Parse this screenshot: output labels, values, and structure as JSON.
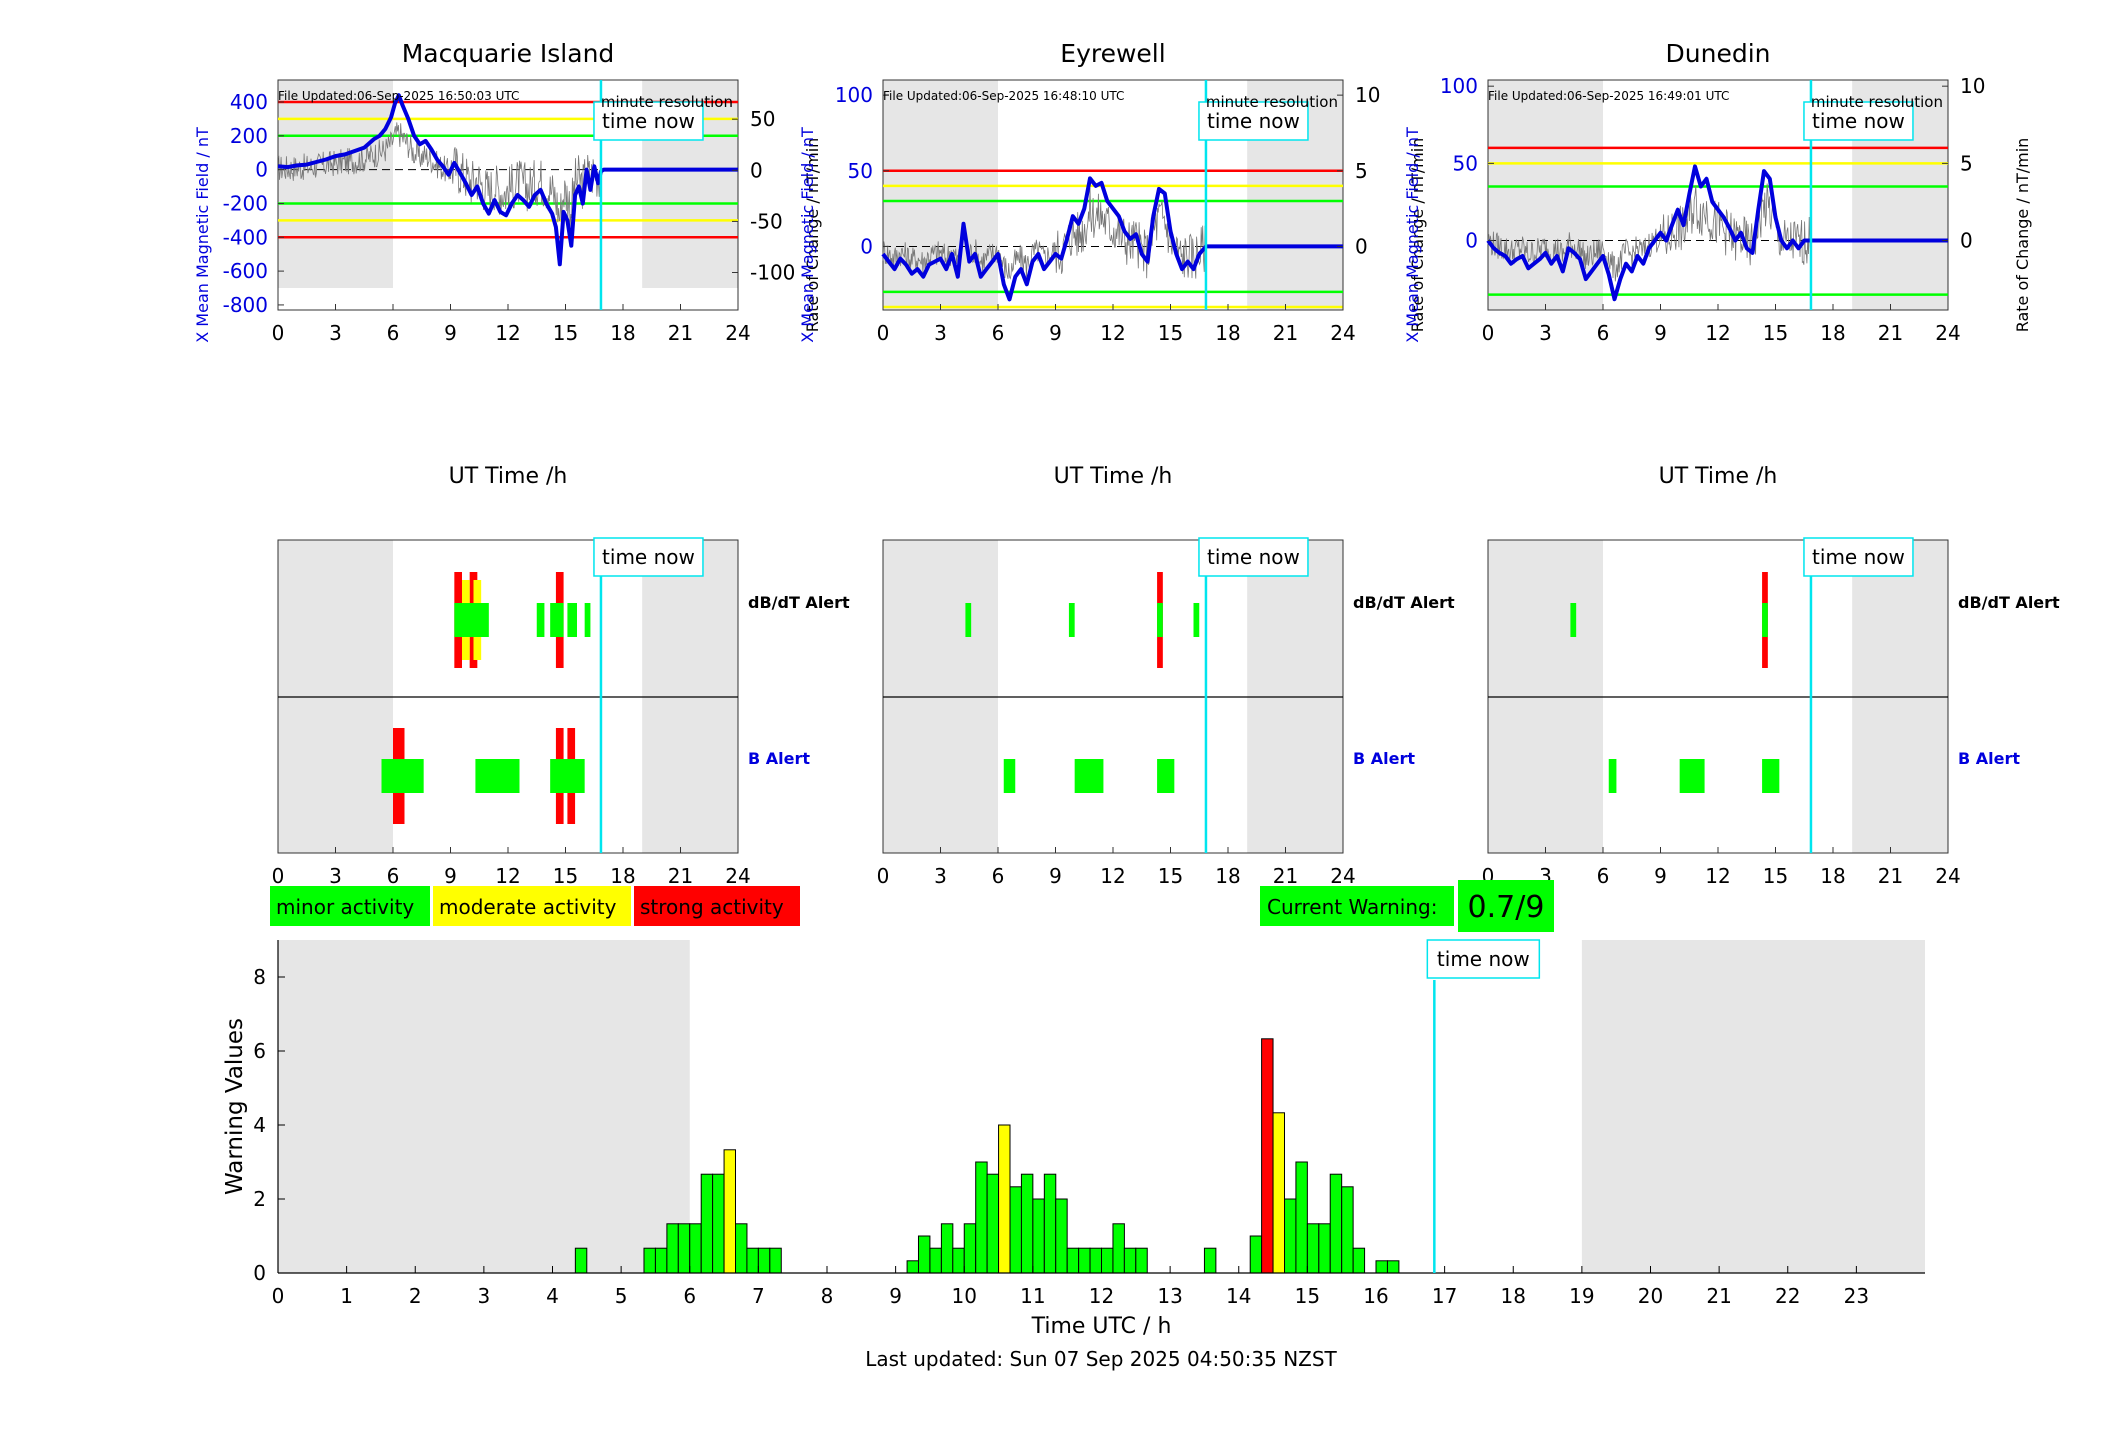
{
  "page": {
    "last_updated": "Last updated: Sun 07 Sep 2025 04:50:35 NZST",
    "time_now_label": "time now",
    "minute_resolution_label": "minute resolution",
    "current_warning_label": "Current Warning:",
    "current_warning_value": "0.7/9",
    "legend": {
      "minor": "minor activity",
      "moderate": "moderate activity",
      "strong": "strong activity"
    },
    "alert_labels": {
      "dbdt": "dB/dT Alert",
      "b": "B Alert"
    },
    "colors": {
      "minor": "#00ff00",
      "moderate": "#ffff00",
      "strong": "#ff0000",
      "field_line": "#0000dd",
      "time_now": "#00e5ee",
      "night_shading": "#e6e6e6"
    }
  },
  "chart_data": [
    {
      "type": "line",
      "title": "Macquarie Island",
      "file_updated": "File Updated:06-Sep-2025 16:50:03 UTC",
      "xlabel": "UT Time /h",
      "ylabel": "X Mean Magnetic Field / nT",
      "ylabel_right": "Rate of Change / nT/min",
      "xlim": [
        0,
        24
      ],
      "xticks": [
        0,
        3,
        6,
        9,
        12,
        15,
        18,
        21,
        24
      ],
      "ylim": [
        -830,
        530
      ],
      "yticks": [
        -800,
        -600,
        -400,
        -200,
        0,
        200,
        400
      ],
      "ylim_right": [
        -136.67,
        88.33
      ],
      "yticks_right": [
        -100,
        -50,
        0,
        50
      ],
      "thresholds": {
        "strong": [
          400,
          -400
        ],
        "moderate": [
          300,
          -300
        ],
        "minor": [
          200,
          -200
        ]
      },
      "night_shading": [
        [
          0,
          6
        ],
        [
          19,
          24
        ]
      ],
      "time_now": 16.85,
      "series": [
        {
          "x": [
            0,
            0.5,
            1,
            1.5,
            2,
            2.5,
            3,
            3.5,
            4,
            4.5,
            5,
            5.3,
            5.6,
            5.9,
            6.1,
            6.3,
            6.5,
            6.8,
            7.1,
            7.4,
            7.7,
            8,
            8.3,
            8.6,
            8.9,
            9.2,
            9.5,
            9.8,
            10.1,
            10.4,
            10.7,
            11,
            11.3,
            11.6,
            11.9,
            12.2,
            12.5,
            12.8,
            13.1,
            13.4,
            13.7,
            14,
            14.3,
            14.5,
            14.7,
            14.9,
            15.1,
            15.3,
            15.5,
            15.7,
            15.9,
            16.1,
            16.3,
            16.5,
            16.7,
            16.85,
            17,
            18,
            19,
            20,
            21,
            22,
            23,
            24
          ],
          "y": [
            20,
            15,
            25,
            30,
            45,
            60,
            80,
            90,
            110,
            130,
            180,
            200,
            240,
            310,
            390,
            440,
            380,
            300,
            200,
            150,
            170,
            120,
            60,
            20,
            -30,
            40,
            -20,
            -80,
            -150,
            -100,
            -200,
            -260,
            -180,
            -250,
            -270,
            -200,
            -150,
            -180,
            -220,
            -150,
            -120,
            -200,
            -260,
            -340,
            -560,
            -250,
            -300,
            -450,
            -150,
            -100,
            -200,
            0,
            -120,
            20,
            -80,
            -10,
            0,
            0,
            0,
            0,
            0,
            0,
            0,
            0
          ]
        }
      ]
    },
    {
      "type": "line",
      "title": "Eyrewell",
      "file_updated": "File Updated:06-Sep-2025 16:48:10 UTC",
      "xlabel": "UT Time /h",
      "ylabel": "X Mean Magnetic Field / nT",
      "ylabel_right": "Rate of Change / nT/min",
      "xlim": [
        0,
        24
      ],
      "xticks": [
        0,
        3,
        6,
        9,
        12,
        15,
        18,
        21,
        24
      ],
      "ylim": [
        -42,
        110
      ],
      "yticks": [
        0,
        50,
        100
      ],
      "ylim_right": [
        -4.2,
        11
      ],
      "yticks_right": [
        0,
        5,
        10
      ],
      "thresholds": {
        "strong": [
          50
        ],
        "moderate": [
          40,
          -40
        ],
        "minor": [
          30,
          -30
        ]
      },
      "night_shading": [
        [
          0,
          6
        ],
        [
          19,
          24
        ]
      ],
      "time_now": 16.85,
      "series": [
        {
          "x": [
            0,
            0.3,
            0.6,
            0.9,
            1.2,
            1.5,
            1.8,
            2.1,
            2.4,
            2.7,
            3,
            3.3,
            3.6,
            3.9,
            4.2,
            4.5,
            4.8,
            5.1,
            5.4,
            5.7,
            6,
            6.3,
            6.6,
            6.9,
            7.2,
            7.5,
            7.8,
            8.1,
            8.4,
            8.7,
            9,
            9.3,
            9.6,
            9.9,
            10.2,
            10.5,
            10.8,
            11.1,
            11.4,
            11.7,
            12,
            12.3,
            12.6,
            12.9,
            13.2,
            13.5,
            13.8,
            14.1,
            14.4,
            14.7,
            15,
            15.3,
            15.6,
            15.9,
            16.2,
            16.5,
            16.85,
            17,
            18,
            19,
            20,
            21,
            22,
            23,
            24
          ],
          "y": [
            -5,
            -10,
            -15,
            -8,
            -12,
            -18,
            -15,
            -20,
            -12,
            -10,
            -8,
            -15,
            -5,
            -20,
            15,
            -10,
            -5,
            -20,
            -15,
            -10,
            -5,
            -25,
            -35,
            -20,
            -15,
            -25,
            -10,
            -5,
            -15,
            -10,
            -5,
            -8,
            5,
            20,
            15,
            25,
            45,
            40,
            42,
            30,
            25,
            20,
            10,
            5,
            8,
            -5,
            -10,
            20,
            38,
            35,
            10,
            -5,
            -15,
            -10,
            -15,
            -5,
            0,
            0,
            0,
            0,
            0,
            0,
            0,
            0,
            0
          ]
        }
      ]
    },
    {
      "type": "line",
      "title": "Dunedin",
      "file_updated": "File Updated:06-Sep-2025 16:49:01 UTC",
      "xlabel": "UT Time /h",
      "ylabel": "X Mean Magnetic Field / nT",
      "ylabel_right": "Rate of Change / nT/min",
      "xlim": [
        0,
        24
      ],
      "xticks": [
        0,
        3,
        6,
        9,
        12,
        15,
        18,
        21,
        24
      ],
      "ylim": [
        -45,
        104
      ],
      "yticks": [
        0,
        50,
        100
      ],
      "ylim_right": [
        -4.5,
        10.4
      ],
      "yticks_right": [
        0,
        5,
        10
      ],
      "thresholds": {
        "strong": [
          60
        ],
        "moderate": [
          50
        ],
        "minor": [
          35,
          -35
        ]
      },
      "night_shading": [
        [
          0,
          6
        ],
        [
          19,
          24
        ]
      ],
      "time_now": 16.85,
      "series": [
        {
          "x": [
            0,
            0.3,
            0.6,
            0.9,
            1.2,
            1.5,
            1.8,
            2.1,
            2.4,
            2.7,
            3,
            3.3,
            3.6,
            3.9,
            4.2,
            4.5,
            4.8,
            5.1,
            5.4,
            5.7,
            6,
            6.3,
            6.6,
            6.9,
            7.2,
            7.5,
            7.8,
            8.1,
            8.4,
            8.7,
            9,
            9.3,
            9.6,
            9.9,
            10.2,
            10.5,
            10.8,
            11.1,
            11.4,
            11.7,
            12,
            12.3,
            12.6,
            12.9,
            13.2,
            13.5,
            13.8,
            14.1,
            14.4,
            14.7,
            15,
            15.3,
            15.6,
            15.9,
            16.2,
            16.5,
            16.85,
            17,
            18,
            19,
            20,
            21,
            22,
            23,
            24
          ],
          "y": [
            0,
            -5,
            -8,
            -10,
            -15,
            -12,
            -10,
            -18,
            -15,
            -12,
            -8,
            -15,
            -10,
            -20,
            -5,
            -8,
            -12,
            -25,
            -20,
            -15,
            -10,
            -22,
            -38,
            -25,
            -15,
            -20,
            -10,
            -15,
            -5,
            0,
            5,
            0,
            10,
            20,
            10,
            30,
            48,
            35,
            40,
            25,
            20,
            15,
            8,
            0,
            5,
            -5,
            -8,
            20,
            45,
            40,
            15,
            0,
            -5,
            0,
            -5,
            0,
            0,
            0,
            0,
            0,
            0,
            0,
            0,
            0,
            0
          ]
        }
      ]
    },
    {
      "type": "alert_timeline",
      "station": "Macquarie Island",
      "xlim": [
        0,
        24
      ],
      "xticks": [
        0,
        3,
        6,
        9,
        12,
        15,
        18,
        21,
        24
      ],
      "night_shading": [
        [
          0,
          6
        ],
        [
          19,
          24
        ]
      ],
      "time_now": 16.85,
      "dbdt_alerts": [
        {
          "start": 9.2,
          "end": 11.0,
          "level": "minor"
        },
        {
          "start": 9.6,
          "end": 10.0,
          "level": "moderate"
        },
        {
          "start": 10.2,
          "end": 10.6,
          "level": "moderate"
        },
        {
          "start": 9.2,
          "end": 9.6,
          "level": "strong"
        },
        {
          "start": 10.0,
          "end": 10.4,
          "level": "strong"
        },
        {
          "start": 13.5,
          "end": 13.9,
          "level": "minor"
        },
        {
          "start": 14.2,
          "end": 14.9,
          "level": "minor"
        },
        {
          "start": 14.5,
          "end": 14.9,
          "level": "strong"
        },
        {
          "start": 15.1,
          "end": 15.6,
          "level": "minor"
        },
        {
          "start": 16.0,
          "end": 16.3,
          "level": "minor"
        }
      ],
      "b_alerts": [
        {
          "start": 5.4,
          "end": 7.6,
          "level": "minor"
        },
        {
          "start": 6.0,
          "end": 6.6,
          "level": "strong"
        },
        {
          "start": 10.3,
          "end": 12.6,
          "level": "minor"
        },
        {
          "start": 14.2,
          "end": 16.0,
          "level": "minor"
        },
        {
          "start": 14.5,
          "end": 14.9,
          "level": "strong"
        },
        {
          "start": 15.1,
          "end": 15.5,
          "level": "strong"
        }
      ]
    },
    {
      "type": "alert_timeline",
      "station": "Eyrewell",
      "xlim": [
        0,
        24
      ],
      "xticks": [
        0,
        3,
        6,
        9,
        12,
        15,
        18,
        21,
        24
      ],
      "night_shading": [
        [
          0,
          6
        ],
        [
          19,
          24
        ]
      ],
      "time_now": 16.85,
      "dbdt_alerts": [
        {
          "start": 4.3,
          "end": 4.6,
          "level": "minor"
        },
        {
          "start": 9.7,
          "end": 10.0,
          "level": "minor"
        },
        {
          "start": 14.3,
          "end": 14.6,
          "level": "minor"
        },
        {
          "start": 14.3,
          "end": 14.6,
          "level": "strong"
        },
        {
          "start": 16.2,
          "end": 16.5,
          "level": "minor"
        }
      ],
      "b_alerts": [
        {
          "start": 6.3,
          "end": 6.9,
          "level": "minor"
        },
        {
          "start": 10.0,
          "end": 11.5,
          "level": "minor"
        },
        {
          "start": 14.3,
          "end": 15.2,
          "level": "minor"
        }
      ]
    },
    {
      "type": "alert_timeline",
      "station": "Dunedin",
      "xlim": [
        0,
        24
      ],
      "xticks": [
        0,
        3,
        6,
        9,
        12,
        15,
        18,
        21,
        24
      ],
      "night_shading": [
        [
          0,
          6
        ],
        [
          19,
          24
        ]
      ],
      "time_now": 16.85,
      "dbdt_alerts": [
        {
          "start": 4.3,
          "end": 4.6,
          "level": "minor"
        },
        {
          "start": 14.3,
          "end": 14.6,
          "level": "minor"
        },
        {
          "start": 14.3,
          "end": 14.6,
          "level": "strong"
        }
      ],
      "b_alerts": [
        {
          "start": 6.3,
          "end": 6.7,
          "level": "minor"
        },
        {
          "start": 10.0,
          "end": 11.3,
          "level": "minor"
        },
        {
          "start": 14.3,
          "end": 15.2,
          "level": "minor"
        }
      ]
    },
    {
      "type": "bar",
      "xlabel": "Time UTC / h",
      "ylabel": "Warning Values",
      "xlim": [
        0,
        24
      ],
      "xticks": [
        0,
        1,
        2,
        3,
        4,
        5,
        6,
        7,
        8,
        9,
        10,
        11,
        12,
        13,
        14,
        15,
        16,
        17,
        18,
        19,
        20,
        21,
        22,
        23
      ],
      "ylim": [
        0,
        9
      ],
      "yticks": [
        0,
        2,
        4,
        6,
        8
      ],
      "night_shading": [
        [
          0,
          6
        ],
        [
          19,
          24
        ]
      ],
      "time_now": 16.85,
      "bin_width_h": 0.1667,
      "bars": [
        {
          "t": 4.333,
          "v": 0.67,
          "level": "minor"
        },
        {
          "t": 5.333,
          "v": 0.67,
          "level": "minor"
        },
        {
          "t": 5.5,
          "v": 0.67,
          "level": "minor"
        },
        {
          "t": 5.667,
          "v": 1.33,
          "level": "minor"
        },
        {
          "t": 5.833,
          "v": 1.33,
          "level": "minor"
        },
        {
          "t": 6.0,
          "v": 1.33,
          "level": "minor"
        },
        {
          "t": 6.167,
          "v": 2.67,
          "level": "minor"
        },
        {
          "t": 6.333,
          "v": 2.67,
          "level": "minor"
        },
        {
          "t": 6.5,
          "v": 3.33,
          "level": "moderate"
        },
        {
          "t": 6.667,
          "v": 1.33,
          "level": "minor"
        },
        {
          "t": 6.833,
          "v": 0.67,
          "level": "minor"
        },
        {
          "t": 7.0,
          "v": 0.67,
          "level": "minor"
        },
        {
          "t": 7.167,
          "v": 0.67,
          "level": "minor"
        },
        {
          "t": 9.167,
          "v": 0.33,
          "level": "minor"
        },
        {
          "t": 9.333,
          "v": 1.0,
          "level": "minor"
        },
        {
          "t": 9.5,
          "v": 0.67,
          "level": "minor"
        },
        {
          "t": 9.667,
          "v": 1.33,
          "level": "minor"
        },
        {
          "t": 9.833,
          "v": 0.67,
          "level": "minor"
        },
        {
          "t": 10.0,
          "v": 1.33,
          "level": "minor"
        },
        {
          "t": 10.167,
          "v": 3.0,
          "level": "minor"
        },
        {
          "t": 10.333,
          "v": 2.67,
          "level": "minor"
        },
        {
          "t": 10.5,
          "v": 4.0,
          "level": "moderate"
        },
        {
          "t": 10.667,
          "v": 2.33,
          "level": "minor"
        },
        {
          "t": 10.833,
          "v": 2.67,
          "level": "minor"
        },
        {
          "t": 11.0,
          "v": 2.0,
          "level": "minor"
        },
        {
          "t": 11.167,
          "v": 2.67,
          "level": "minor"
        },
        {
          "t": 11.333,
          "v": 2.0,
          "level": "minor"
        },
        {
          "t": 11.5,
          "v": 0.67,
          "level": "minor"
        },
        {
          "t": 11.667,
          "v": 0.67,
          "level": "minor"
        },
        {
          "t": 11.833,
          "v": 0.67,
          "level": "minor"
        },
        {
          "t": 12.0,
          "v": 0.67,
          "level": "minor"
        },
        {
          "t": 12.167,
          "v": 1.33,
          "level": "minor"
        },
        {
          "t": 12.333,
          "v": 0.67,
          "level": "minor"
        },
        {
          "t": 12.5,
          "v": 0.67,
          "level": "minor"
        },
        {
          "t": 13.5,
          "v": 0.67,
          "level": "minor"
        },
        {
          "t": 14.167,
          "v": 1.0,
          "level": "minor"
        },
        {
          "t": 14.333,
          "v": 6.33,
          "level": "strong"
        },
        {
          "t": 14.5,
          "v": 4.33,
          "level": "moderate"
        },
        {
          "t": 14.667,
          "v": 2.0,
          "level": "minor"
        },
        {
          "t": 14.833,
          "v": 3.0,
          "level": "minor"
        },
        {
          "t": 15.0,
          "v": 1.33,
          "level": "minor"
        },
        {
          "t": 15.167,
          "v": 1.33,
          "level": "minor"
        },
        {
          "t": 15.333,
          "v": 2.67,
          "level": "minor"
        },
        {
          "t": 15.5,
          "v": 2.33,
          "level": "minor"
        },
        {
          "t": 15.667,
          "v": 0.67,
          "level": "minor"
        },
        {
          "t": 16.0,
          "v": 0.33,
          "level": "minor"
        },
        {
          "t": 16.167,
          "v": 0.33,
          "level": "minor"
        }
      ]
    }
  ]
}
